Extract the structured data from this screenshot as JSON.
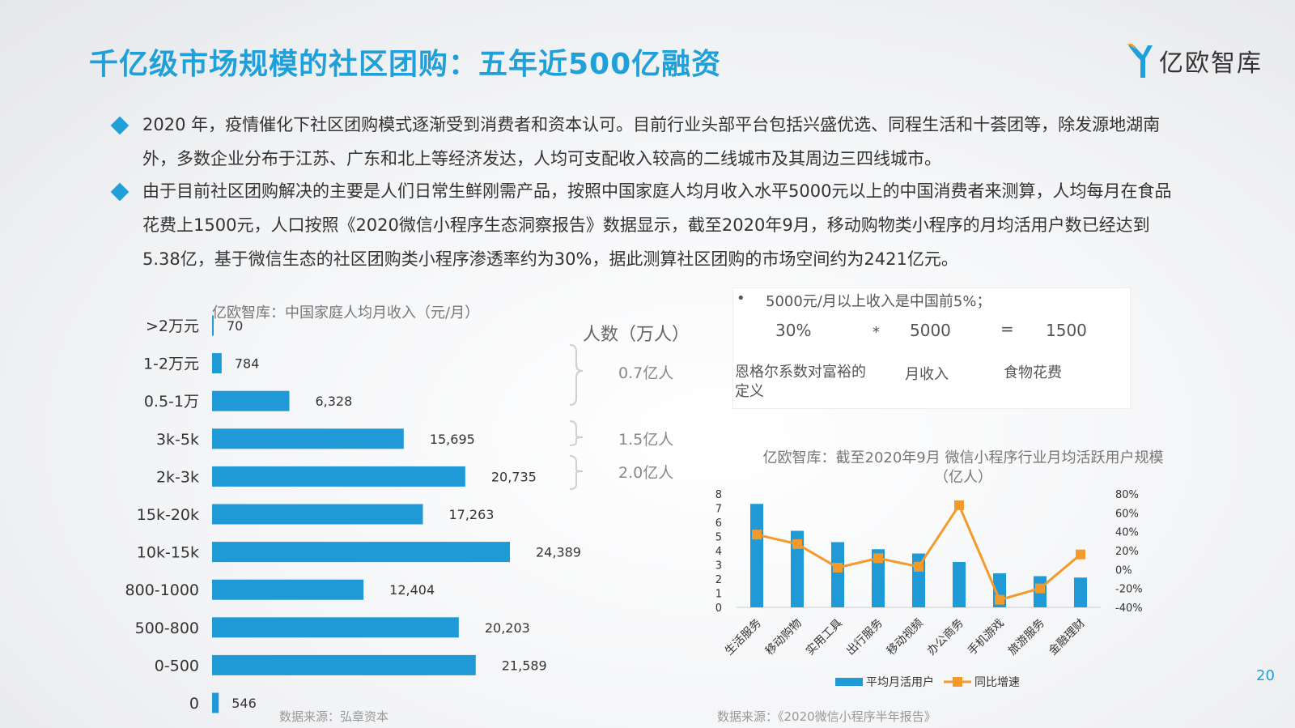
{
  "header": {
    "title": "千亿级市场规模的社区团购：五年近500亿融资",
    "logo_text": "亿欧智库",
    "brand_color": "#1fa0d8"
  },
  "paragraphs": [
    "2020 年，疫情催化下社区团购模式逐渐受到消费者和资本认可。目前行业头部平台包括兴盛优选、同程生活和十荟团等，除发源地湖南外，多数企业分布于江苏、广东和北上等经济发达，人均可支配收入较高的二线城市及其周边三四线城市。",
    " 由于目前社区团购解决的主要是人们日常生鲜刚需产品，按照中国家庭人均月收入水平5000元以上的中国消费者来测算，人均每月在食品花费上1500元，人口按照《2020微信小程序生态洞察报告》数据显示，截至2020年9月，移动购物类小程序的月均活用户数已经达到5.38亿，基于微信生态的社区团购类小程序渗透率约为30%，据此测算社区团购的市场空间约为2421亿元。"
  ],
  "people": {
    "title": "人数（万人）",
    "labels": [
      "0.7亿人",
      "1.5亿人",
      "2.0亿人"
    ]
  },
  "info_box": {
    "note": "5000元/月以上收入是中国前5%；",
    "row_values": [
      "30%",
      "*",
      "5000",
      "=",
      "1500"
    ],
    "captions": [
      "恩格尔系数对富裕的定义",
      "月收入",
      "食物花费"
    ]
  },
  "sources": {
    "left": "数据来源：弘章资本",
    "right": "数据来源：《2020微信小程序半年报告》"
  },
  "page_number": "20",
  "chart_data": [
    {
      "type": "bar",
      "orientation": "horizontal",
      "title": "亿欧智库：中国家庭人均月收入（元/月）",
      "categories": [
        ">2万元",
        "1-2万元",
        "0.5-1万",
        "3k-5k",
        "2k-3k",
        "15k-20k",
        "10k-15k",
        "800-1000",
        "500-800",
        "0-500",
        "0"
      ],
      "values": [
        70,
        784,
        6328,
        15695,
        20735,
        17263,
        24389,
        12404,
        20203,
        21589,
        546
      ],
      "value_labels": [
        "70",
        "784",
        "6,328",
        "15,695",
        "20,735",
        "17,263",
        "24,389",
        "12,404",
        "20,203",
        "21,589",
        "546"
      ],
      "color": "#1f9ad6",
      "grid": false
    },
    {
      "type": "bar",
      "title": "亿欧智库：截至2020年9月 微信小程序行业月均活跃用户规模（亿人）",
      "categories": [
        "生活服务",
        "移动购物",
        "实用工具",
        "出行服务",
        "移动视频",
        "办公商务",
        "手机游戏",
        "旅游服务",
        "金融理财"
      ],
      "series": [
        {
          "name": "平均月活用户",
          "type": "bar",
          "axis": "left",
          "color": "#1f9ad6",
          "values": [
            7.3,
            5.4,
            4.6,
            4.1,
            3.8,
            3.2,
            2.4,
            2.2,
            2.1
          ]
        },
        {
          "name": "同比增速",
          "type": "line",
          "axis": "right",
          "color": "#f39a2b",
          "values": [
            37,
            27,
            2,
            12,
            3,
            68,
            -32,
            -20,
            16
          ]
        }
      ],
      "ylim_left": [
        0,
        8
      ],
      "yticks_left": [
        "0",
        "1",
        "2",
        "3",
        "4",
        "5",
        "6",
        "7",
        "8"
      ],
      "ylim_right": [
        -40,
        80
      ],
      "yticks_right": [
        "-40%",
        "-20%",
        "0%",
        "20%",
        "40%",
        "60%",
        "80%"
      ],
      "legend_position": "bottom",
      "grid": false
    }
  ]
}
